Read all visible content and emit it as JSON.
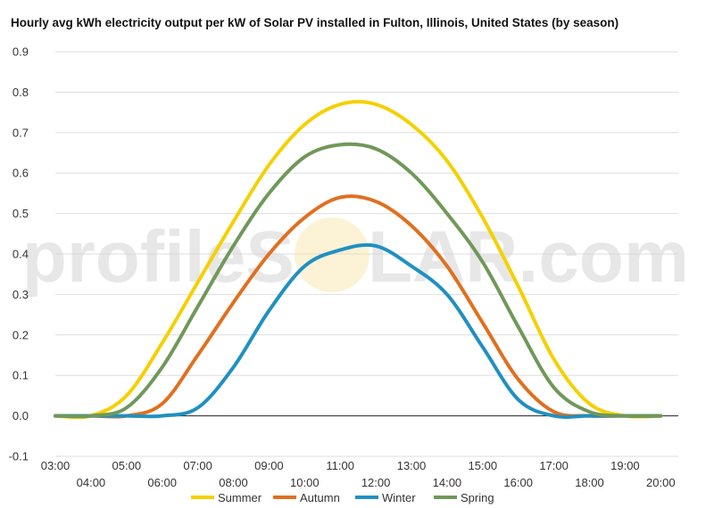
{
  "watermark": {
    "left": "profileS",
    "right": "LAR.com"
  },
  "chart_data": {
    "type": "line",
    "title": "Hourly avg kWh electricity output per kW of Solar PV installed in Fulton, Illinois, United States (by season)",
    "xlabel": "",
    "ylabel": "",
    "x": [
      "03:00",
      "04:00",
      "05:00",
      "06:00",
      "07:00",
      "08:00",
      "09:00",
      "10:00",
      "11:00",
      "12:00",
      "13:00",
      "14:00",
      "15:00",
      "16:00",
      "17:00",
      "18:00",
      "19:00",
      "20:00"
    ],
    "ylim": [
      -0.1,
      0.9
    ],
    "yticks": [
      -0.1,
      0.0,
      0.1,
      0.2,
      0.3,
      0.4,
      0.5,
      0.6,
      0.7,
      0.8,
      0.9
    ],
    "grid": true,
    "legend": "bottom",
    "series": [
      {
        "name": "Summer",
        "color": "#f5d000",
        "values": [
          0.0,
          0.0,
          0.05,
          0.18,
          0.33,
          0.48,
          0.62,
          0.72,
          0.77,
          0.77,
          0.72,
          0.63,
          0.49,
          0.32,
          0.14,
          0.03,
          0.0,
          0.0
        ]
      },
      {
        "name": "Autumn",
        "color": "#e07020",
        "values": [
          0.0,
          0.0,
          0.0,
          0.03,
          0.15,
          0.28,
          0.4,
          0.49,
          0.54,
          0.53,
          0.47,
          0.37,
          0.23,
          0.09,
          0.01,
          0.0,
          0.0,
          0.0
        ]
      },
      {
        "name": "Winter",
        "color": "#2090c0",
        "values": [
          0.0,
          0.0,
          0.0,
          0.0,
          0.02,
          0.12,
          0.26,
          0.37,
          0.41,
          0.42,
          0.37,
          0.3,
          0.17,
          0.04,
          0.0,
          0.0,
          0.0,
          0.0
        ]
      },
      {
        "name": "Spring",
        "color": "#70985a",
        "values": [
          0.0,
          0.0,
          0.02,
          0.12,
          0.27,
          0.42,
          0.55,
          0.64,
          0.67,
          0.66,
          0.6,
          0.5,
          0.38,
          0.22,
          0.07,
          0.01,
          0.0,
          0.0
        ]
      }
    ]
  }
}
